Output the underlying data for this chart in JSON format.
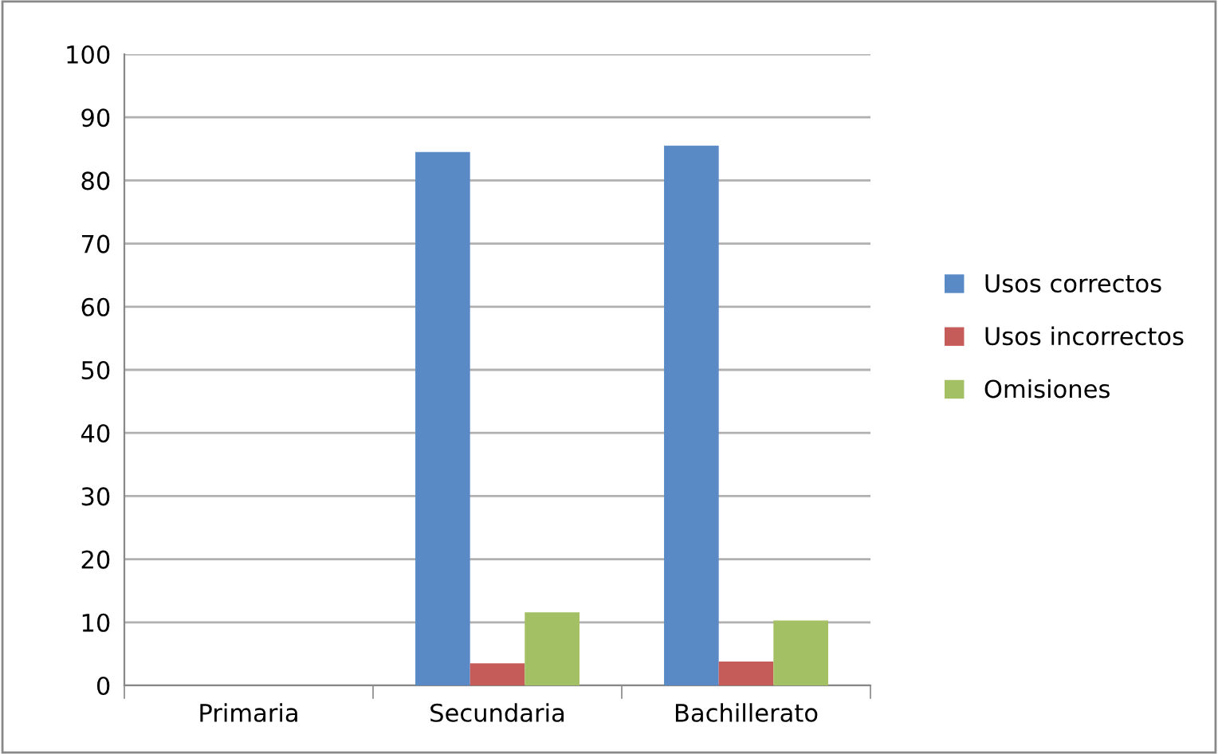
{
  "chart_data": {
    "type": "bar",
    "categories": [
      "Primaria",
      "Secundaria",
      "Bachillerato"
    ],
    "series": [
      {
        "name": "Usos correctos",
        "color": "#5a8ac6",
        "values": [
          0,
          84.5,
          85.5
        ]
      },
      {
        "name": "Usos incorrectos",
        "color": "#c65c5a",
        "values": [
          0,
          3.5,
          3.8
        ]
      },
      {
        "name": "Omisiones",
        "color": "#a4c064",
        "values": [
          0,
          11.6,
          10.3
        ]
      }
    ],
    "ylim": [
      0,
      100
    ],
    "yticks": [
      0,
      10,
      20,
      30,
      40,
      50,
      60,
      70,
      80,
      90,
      100
    ],
    "grid": "y",
    "legend": "right"
  }
}
